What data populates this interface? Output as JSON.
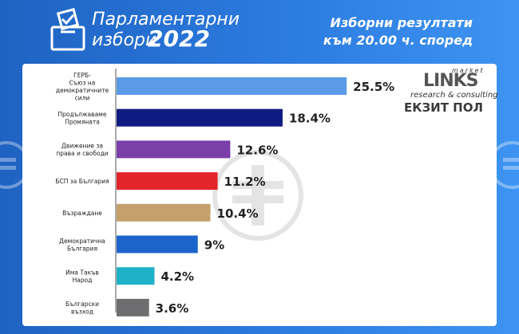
{
  "header": {
    "title_line1": "Парламентарни",
    "title_line2": "избори",
    "title_year": "2022",
    "subtitle_line1": "Изборни резултати",
    "subtitle_line2": "към 20.00 ч. според"
  },
  "logo": {
    "market": "market",
    "links": "LINKS",
    "research": "research & consulting"
  },
  "poll_label": "ЕКЗИТ ПОЛ",
  "chart_data": {
    "type": "bar",
    "orientation": "horizontal",
    "categories": [
      [
        "ГЕРБ-",
        "Съюз на",
        "демократичните",
        "сили"
      ],
      [
        "Продължаваме",
        "Промяната"
      ],
      [
        "Движение за",
        "права и свободи"
      ],
      [
        "БСП за България"
      ],
      [
        "Възраждане"
      ],
      [
        "Демократична",
        "България"
      ],
      [
        "Има Такъв",
        "Народ"
      ],
      [
        "Български",
        "възход"
      ]
    ],
    "values": [
      25.5,
      18.4,
      12.6,
      11.2,
      10.4,
      9,
      4.2,
      3.6
    ],
    "value_labels": [
      "25.5%",
      "18.4%",
      "12.6%",
      "11.2%",
      "10.4%",
      "9%",
      "4.2%",
      "3.6%"
    ],
    "colors": [
      "#5b9ae6",
      "#101b82",
      "#7a3fa8",
      "#e3242b",
      "#c4a06a",
      "#1c64cc",
      "#1fb1c8",
      "#6e6e70"
    ],
    "xlim": [
      0,
      30
    ],
    "grid": false,
    "legend": "none"
  }
}
